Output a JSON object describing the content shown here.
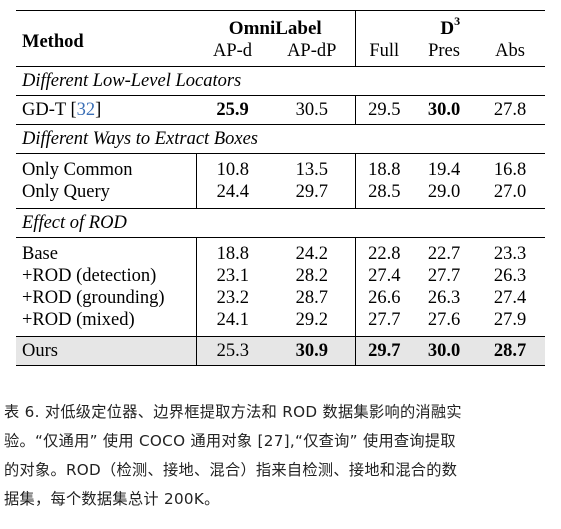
{
  "table": {
    "header": {
      "method": "Method",
      "group1": "OmniLabel",
      "group2_base": "D",
      "group2_sup": "3",
      "columns": [
        "AP-d",
        "AP-dP",
        "Full",
        "Pres",
        "Abs"
      ]
    },
    "sections": [
      {
        "title": "Different Low-Level Locators",
        "rows": [
          {
            "method": "GD-T [",
            "cite": "32",
            "method_end": "]",
            "values": [
              "25.9",
              "30.5",
              "29.5",
              "30.0",
              "27.8"
            ],
            "bold": [
              true,
              false,
              false,
              true,
              false
            ]
          }
        ]
      },
      {
        "title": "Different Ways to Extract Boxes",
        "rows": [
          {
            "method": "Only Common",
            "values": [
              "10.8",
              "13.5",
              "18.8",
              "19.4",
              "16.8"
            ]
          },
          {
            "method": "Only Query",
            "values": [
              "24.4",
              "29.7",
              "28.5",
              "29.0",
              "27.0"
            ]
          }
        ]
      },
      {
        "title": "Effect of ROD",
        "rows": [
          {
            "method": "Base",
            "values": [
              "18.8",
              "24.2",
              "22.8",
              "22.7",
              "23.3"
            ]
          },
          {
            "method": "+ROD (detection)",
            "values": [
              "23.1",
              "28.2",
              "27.4",
              "27.7",
              "26.3"
            ]
          },
          {
            "method": "+ROD (grounding)",
            "values": [
              "23.2",
              "28.7",
              "26.6",
              "26.3",
              "27.4"
            ]
          },
          {
            "method": "+ROD (mixed)",
            "values": [
              "24.1",
              "29.2",
              "27.7",
              "27.6",
              "27.9"
            ]
          }
        ]
      }
    ],
    "final_row": {
      "method": "Ours",
      "values": [
        "25.3",
        "30.9",
        "29.7",
        "30.0",
        "28.7"
      ],
      "bold": [
        false,
        true,
        true,
        true,
        true
      ]
    }
  },
  "caption": {
    "lines": [
      "表 6. 对低级定位器、边界框提取方法和 ROD 数据集影响的消融实",
      "验。“仅通用” 使用 COCO 通用对象 [27],“仅查询” 使用查询提取",
      "的对象。ROD（检测、接地、混合）指来自检测、接地和混合的数",
      "据集，每个数据集总计 200K。"
    ]
  }
}
